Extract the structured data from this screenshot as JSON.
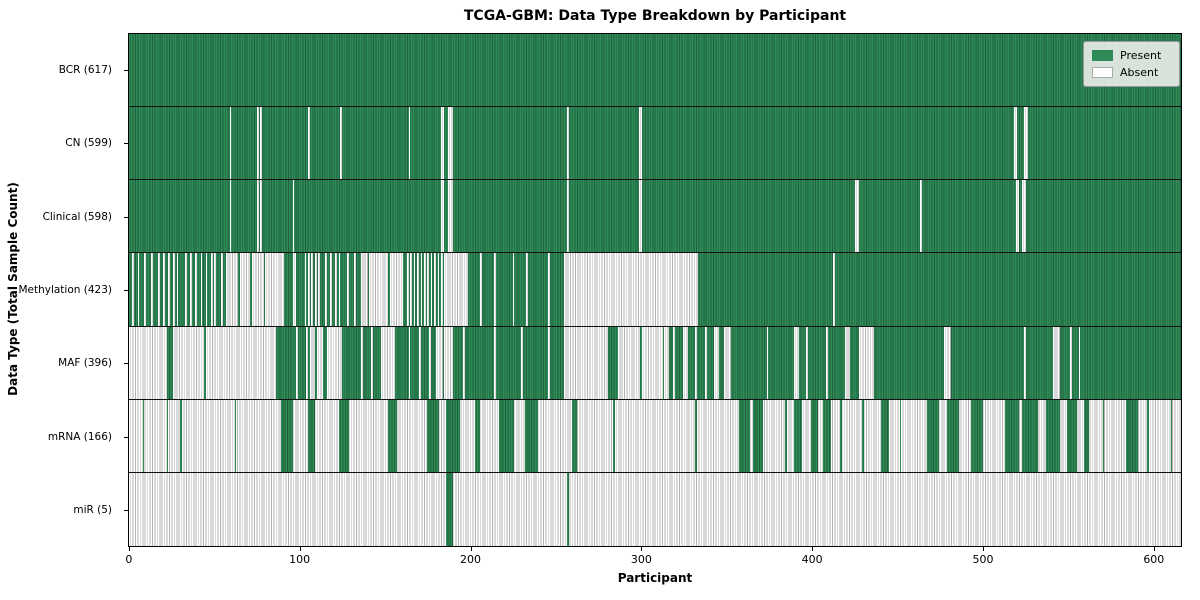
{
  "chart_data": {
    "type": "heatmap",
    "title": "TCGA-GBM: Data Type Breakdown by Participant",
    "xlabel": "Participant",
    "ylabel": "Data Type (Total Sample Count)",
    "n_participants": 617,
    "xlim": [
      -0.5,
      616.5
    ],
    "x_ticks": [
      0,
      100,
      200,
      300,
      400,
      500,
      600
    ],
    "grid": false,
    "legend_position": "upper right",
    "legend": [
      {
        "label": "Present",
        "color": "#2E8B57"
      },
      {
        "label": "Absent",
        "color": "#FFFFFF"
      }
    ],
    "colors": {
      "present": "#2E8B57",
      "present_edge": "#20603D",
      "absent": "#FFFFFF",
      "absent_edge": "#B3B3B3",
      "row_divider": "#111111"
    },
    "rows": [
      {
        "id": "bcr",
        "label": "BCR (617)",
        "data_type": "BCR",
        "count": 617,
        "base": "present",
        "ranges_meaning": "absent",
        "ranges": []
      },
      {
        "id": "cn",
        "label": "CN (599)",
        "data_type": "CN",
        "count": 599,
        "base": "present",
        "ranges_meaning": "absent",
        "ranges": [
          [
            59,
            59
          ],
          [
            75,
            75
          ],
          [
            77,
            77
          ],
          [
            105,
            105
          ],
          [
            124,
            124
          ],
          [
            164,
            164
          ],
          [
            183,
            184
          ],
          [
            187,
            189
          ],
          [
            257,
            257
          ],
          [
            299,
            300
          ],
          [
            519,
            520
          ],
          [
            525,
            526
          ]
        ]
      },
      {
        "id": "clinical",
        "label": "Clinical (598)",
        "data_type": "Clinical",
        "count": 598,
        "base": "present",
        "ranges_meaning": "absent",
        "ranges": [
          [
            59,
            59
          ],
          [
            75,
            75
          ],
          [
            77,
            77
          ],
          [
            96,
            96
          ],
          [
            183,
            184
          ],
          [
            187,
            189
          ],
          [
            257,
            257
          ],
          [
            299,
            300
          ],
          [
            426,
            427
          ],
          [
            464,
            464
          ],
          [
            520,
            521
          ],
          [
            524,
            525
          ]
        ]
      },
      {
        "id": "methylation",
        "label": "Methylation (423)",
        "data_type": "Methylation",
        "count": 423,
        "base": "present",
        "ranges_meaning": "absent",
        "ranges": [
          [
            2,
            2
          ],
          [
            5,
            5
          ],
          [
            9,
            9
          ],
          [
            13,
            13
          ],
          [
            17,
            17
          ],
          [
            20,
            20
          ],
          [
            23,
            23
          ],
          [
            26,
            26
          ],
          [
            28,
            28
          ],
          [
            33,
            33
          ],
          [
            36,
            36
          ],
          [
            39,
            39
          ],
          [
            42,
            42
          ],
          [
            45,
            45
          ],
          [
            48,
            48
          ],
          [
            50,
            50
          ],
          [
            54,
            54
          ],
          [
            57,
            63
          ],
          [
            65,
            70
          ],
          [
            72,
            78
          ],
          [
            80,
            90
          ],
          [
            96,
            97
          ],
          [
            103,
            103
          ],
          [
            105,
            105
          ],
          [
            107,
            107
          ],
          [
            109,
            109
          ],
          [
            111,
            111
          ],
          [
            115,
            115
          ],
          [
            118,
            118
          ],
          [
            121,
            121
          ],
          [
            123,
            123
          ],
          [
            128,
            128
          ],
          [
            132,
            132
          ],
          [
            136,
            139
          ],
          [
            141,
            151
          ],
          [
            153,
            160
          ],
          [
            163,
            163
          ],
          [
            165,
            165
          ],
          [
            167,
            167
          ],
          [
            169,
            169
          ],
          [
            171,
            171
          ],
          [
            173,
            173
          ],
          [
            175,
            175
          ],
          [
            177,
            177
          ],
          [
            179,
            179
          ],
          [
            181,
            181
          ],
          [
            183,
            183
          ],
          [
            185,
            185
          ],
          [
            186,
            198
          ],
          [
            206,
            206
          ],
          [
            214,
            214
          ],
          [
            225,
            225
          ],
          [
            233,
            233
          ],
          [
            246,
            246
          ],
          [
            255,
            333
          ],
          [
            413,
            413
          ]
        ]
      },
      {
        "id": "maf",
        "label": "MAF (396)",
        "data_type": "MAF",
        "count": 396,
        "base": "present",
        "ranges_meaning": "absent",
        "ranges": [
          [
            0,
            21
          ],
          [
            26,
            43
          ],
          [
            45,
            85
          ],
          [
            98,
            98
          ],
          [
            104,
            104
          ],
          [
            106,
            108
          ],
          [
            110,
            113
          ],
          [
            116,
            118
          ],
          [
            119,
            124
          ],
          [
            136,
            136
          ],
          [
            142,
            142
          ],
          [
            148,
            155
          ],
          [
            164,
            164
          ],
          [
            170,
            170
          ],
          [
            176,
            176
          ],
          [
            180,
            183
          ],
          [
            185,
            189
          ],
          [
            196,
            196
          ],
          [
            214,
            214
          ],
          [
            230,
            230
          ],
          [
            246,
            246
          ],
          [
            255,
            280
          ],
          [
            287,
            299
          ],
          [
            301,
            312
          ],
          [
            314,
            316
          ],
          [
            319,
            319
          ],
          [
            325,
            327
          ],
          [
            332,
            332
          ],
          [
            338,
            338
          ],
          [
            343,
            345
          ],
          [
            349,
            352
          ],
          [
            374,
            374
          ],
          [
            390,
            392
          ],
          [
            397,
            397
          ],
          [
            409,
            409
          ],
          [
            420,
            422
          ],
          [
            428,
            436
          ],
          [
            478,
            481
          ],
          [
            525,
            525
          ],
          [
            542,
            545
          ],
          [
            552,
            552
          ],
          [
            557,
            557
          ]
        ]
      },
      {
        "id": "mrna",
        "label": "mRNA (166)",
        "data_type": "mRNA",
        "count": 166,
        "base": "absent",
        "ranges_meaning": "present",
        "ranges": [
          [
            8,
            8
          ],
          [
            22,
            22
          ],
          [
            30,
            30
          ],
          [
            62,
            62
          ],
          [
            89,
            95
          ],
          [
            105,
            108
          ],
          [
            123,
            128
          ],
          [
            152,
            156
          ],
          [
            175,
            181
          ],
          [
            186,
            193
          ],
          [
            203,
            205
          ],
          [
            217,
            225
          ],
          [
            232,
            239
          ],
          [
            260,
            262
          ],
          [
            284,
            284
          ],
          [
            332,
            332
          ],
          [
            358,
            363
          ],
          [
            366,
            371
          ],
          [
            385,
            385
          ],
          [
            390,
            394
          ],
          [
            400,
            403
          ],
          [
            407,
            411
          ],
          [
            417,
            417
          ],
          [
            430,
            430
          ],
          [
            441,
            445
          ],
          [
            452,
            452
          ],
          [
            468,
            474
          ],
          [
            480,
            486
          ],
          [
            494,
            500
          ],
          [
            514,
            521
          ],
          [
            524,
            532
          ],
          [
            538,
            545
          ],
          [
            550,
            555
          ],
          [
            560,
            562
          ],
          [
            571,
            571
          ],
          [
            585,
            591
          ],
          [
            597,
            597
          ],
          [
            611,
            611
          ]
        ]
      },
      {
        "id": "mir",
        "label": "miR (5)",
        "data_type": "miR",
        "count": 5,
        "base": "absent",
        "ranges_meaning": "present",
        "ranges": [
          [
            186,
            189
          ],
          [
            257,
            257
          ]
        ]
      }
    ]
  }
}
